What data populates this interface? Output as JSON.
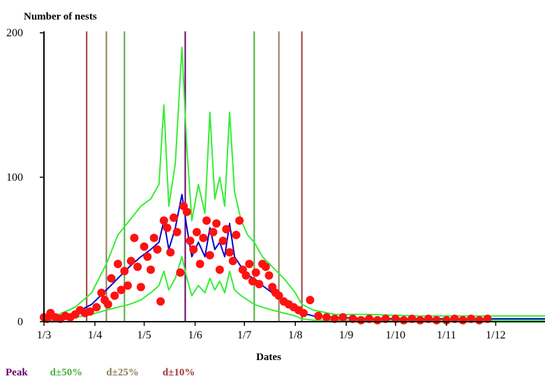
{
  "chart_data": {
    "type": "line",
    "ylabel": "Number of nests",
    "xlabel": "Dates",
    "ylim": [
      0,
      200
    ],
    "yticks": [
      0,
      100,
      200
    ],
    "xlim": [
      "2000-03-01",
      "2000-12-31"
    ],
    "x_ticks": [
      {
        "label": "1/3",
        "date": "2000-03-01"
      },
      {
        "label": "1/4",
        "date": "2000-04-01"
      },
      {
        "label": "1/5",
        "date": "2000-05-01"
      },
      {
        "label": "1/6",
        "date": "2000-06-01"
      },
      {
        "label": "1/7",
        "date": "2000-07-01"
      },
      {
        "label": "1/8",
        "date": "2000-08-01"
      },
      {
        "label": "1/9",
        "date": "2000-09-01"
      },
      {
        "label": "1/10",
        "date": "2000-10-01"
      },
      {
        "label": "1/11",
        "date": "2000-11-01"
      },
      {
        "label": "1/12",
        "date": "2000-12-01"
      }
    ],
    "vertical_lines": [
      {
        "group": "peak",
        "date": "2000-05-26",
        "color": "#660066"
      },
      {
        "group": "d50",
        "date": "2000-04-19",
        "color": "#4caf3f"
      },
      {
        "group": "d50",
        "date": "2000-07-07",
        "color": "#4caf3f"
      },
      {
        "group": "d25",
        "date": "2000-04-08",
        "color": "#8b7d55"
      },
      {
        "group": "d25",
        "date": "2000-07-22",
        "color": "#8b7d55"
      },
      {
        "group": "d10",
        "date": "2000-03-27",
        "color": "#a03a3a"
      },
      {
        "group": "d10",
        "date": "2000-08-05",
        "color": "#a03a3a"
      }
    ],
    "series": [
      {
        "role": "upper-bound",
        "color": "#33ee33",
        "x": [
          "2000-03-01",
          "2000-03-10",
          "2000-03-20",
          "2000-03-30",
          "2000-04-08",
          "2000-04-15",
          "2000-04-22",
          "2000-04-29",
          "2000-05-05",
          "2000-05-10",
          "2000-05-13",
          "2000-05-16",
          "2000-05-20",
          "2000-05-24",
          "2000-05-27",
          "2000-05-30",
          "2000-06-03",
          "2000-06-07",
          "2000-06-10",
          "2000-06-13",
          "2000-06-16",
          "2000-06-19",
          "2000-06-22",
          "2000-06-25",
          "2000-06-29",
          "2000-07-03",
          "2000-07-07",
          "2000-07-12",
          "2000-07-18",
          "2000-07-25",
          "2000-08-01",
          "2000-08-05",
          "2000-08-12",
          "2000-08-25",
          "2000-09-15",
          "2000-10-15",
          "2000-11-15",
          "2000-12-31"
        ],
        "values": [
          3,
          5,
          10,
          20,
          40,
          60,
          70,
          80,
          85,
          95,
          150,
          80,
          110,
          190,
          120,
          70,
          95,
          75,
          145,
          85,
          100,
          80,
          145,
          90,
          70,
          60,
          55,
          45,
          38,
          30,
          20,
          12,
          8,
          5,
          5,
          4,
          4,
          4
        ]
      },
      {
        "role": "mean",
        "color": "#0000cc",
        "x": [
          "2000-03-01",
          "2000-03-10",
          "2000-03-20",
          "2000-03-30",
          "2000-04-08",
          "2000-04-15",
          "2000-04-22",
          "2000-04-29",
          "2000-05-05",
          "2000-05-10",
          "2000-05-13",
          "2000-05-16",
          "2000-05-20",
          "2000-05-24",
          "2000-05-27",
          "2000-05-30",
          "2000-06-03",
          "2000-06-07",
          "2000-06-10",
          "2000-06-13",
          "2000-06-16",
          "2000-06-19",
          "2000-06-22",
          "2000-06-25",
          "2000-06-29",
          "2000-07-03",
          "2000-07-07",
          "2000-07-12",
          "2000-07-18",
          "2000-07-25",
          "2000-08-01",
          "2000-08-05",
          "2000-08-12",
          "2000-08-25",
          "2000-09-15",
          "2000-10-15",
          "2000-11-15",
          "2000-12-31"
        ],
        "values": [
          2,
          3,
          6,
          12,
          22,
          30,
          38,
          45,
          50,
          55,
          70,
          50,
          65,
          88,
          65,
          45,
          55,
          45,
          65,
          50,
          55,
          45,
          68,
          45,
          38,
          32,
          30,
          25,
          20,
          15,
          10,
          6,
          4,
          3,
          2,
          2,
          2,
          2
        ]
      },
      {
        "role": "lower-bound",
        "color": "#33ee33",
        "x": [
          "2000-03-01",
          "2000-03-10",
          "2000-03-20",
          "2000-03-30",
          "2000-04-08",
          "2000-04-15",
          "2000-04-22",
          "2000-04-29",
          "2000-05-05",
          "2000-05-10",
          "2000-05-13",
          "2000-05-16",
          "2000-05-20",
          "2000-05-24",
          "2000-05-27",
          "2000-05-30",
          "2000-06-03",
          "2000-06-07",
          "2000-06-10",
          "2000-06-13",
          "2000-06-16",
          "2000-06-19",
          "2000-06-22",
          "2000-06-25",
          "2000-06-29",
          "2000-07-03",
          "2000-07-07",
          "2000-07-12",
          "2000-07-18",
          "2000-07-25",
          "2000-08-01",
          "2000-08-05",
          "2000-08-12",
          "2000-08-25",
          "2000-09-15",
          "2000-10-15",
          "2000-11-15",
          "2000-12-31"
        ],
        "values": [
          1,
          1,
          3,
          5,
          8,
          10,
          12,
          15,
          20,
          25,
          35,
          22,
          30,
          45,
          30,
          18,
          25,
          20,
          30,
          22,
          28,
          20,
          35,
          22,
          18,
          15,
          12,
          10,
          8,
          6,
          4,
          2,
          1,
          1,
          1,
          1,
          1,
          1
        ]
      },
      {
        "role": "observed",
        "type": "scatter",
        "color": "#ff1111",
        "x": [
          "2000-03-01",
          "2000-03-03",
          "2000-03-05",
          "2000-03-08",
          "2000-03-11",
          "2000-03-14",
          "2000-03-17",
          "2000-03-20",
          "2000-03-23",
          "2000-03-26",
          "2000-03-29",
          "2000-04-02",
          "2000-04-05",
          "2000-04-07",
          "2000-04-09",
          "2000-04-11",
          "2000-04-13",
          "2000-04-15",
          "2000-04-17",
          "2000-04-19",
          "2000-04-21",
          "2000-04-23",
          "2000-04-25",
          "2000-04-27",
          "2000-04-29",
          "2000-05-01",
          "2000-05-03",
          "2000-05-05",
          "2000-05-07",
          "2000-05-09",
          "2000-05-11",
          "2000-05-13",
          "2000-05-15",
          "2000-05-17",
          "2000-05-19",
          "2000-05-21",
          "2000-05-23",
          "2000-05-25",
          "2000-05-27",
          "2000-05-29",
          "2000-05-31",
          "2000-06-02",
          "2000-06-04",
          "2000-06-06",
          "2000-06-08",
          "2000-06-10",
          "2000-06-12",
          "2000-06-14",
          "2000-06-16",
          "2000-06-18",
          "2000-06-20",
          "2000-06-22",
          "2000-06-24",
          "2000-06-26",
          "2000-06-28",
          "2000-06-30",
          "2000-07-02",
          "2000-07-04",
          "2000-07-06",
          "2000-07-08",
          "2000-07-10",
          "2000-07-12",
          "2000-07-14",
          "2000-07-16",
          "2000-07-18",
          "2000-07-20",
          "2000-07-22",
          "2000-07-25",
          "2000-07-28",
          "2000-07-31",
          "2000-08-03",
          "2000-08-06",
          "2000-08-10",
          "2000-08-15",
          "2000-08-20",
          "2000-08-25",
          "2000-08-30",
          "2000-09-05",
          "2000-09-10",
          "2000-09-15",
          "2000-09-20",
          "2000-09-25",
          "2000-10-01",
          "2000-10-06",
          "2000-10-11",
          "2000-10-16",
          "2000-10-21",
          "2000-10-26",
          "2000-11-01",
          "2000-11-06",
          "2000-11-11",
          "2000-11-16",
          "2000-11-21",
          "2000-11-26"
        ],
        "values": [
          3,
          2,
          6,
          3,
          2,
          4,
          3,
          5,
          8,
          6,
          7,
          10,
          20,
          15,
          12,
          30,
          18,
          40,
          22,
          35,
          25,
          42,
          58,
          38,
          24,
          52,
          45,
          36,
          58,
          50,
          14,
          70,
          65,
          48,
          72,
          62,
          34,
          80,
          76,
          56,
          50,
          62,
          40,
          58,
          70,
          46,
          62,
          68,
          36,
          56,
          64,
          48,
          42,
          60,
          70,
          36,
          32,
          40,
          28,
          34,
          26,
          40,
          38,
          32,
          24,
          20,
          18,
          14,
          12,
          10,
          8,
          6,
          15,
          4,
          3,
          2,
          3,
          2,
          1,
          2,
          1,
          2,
          2,
          1,
          2,
          1,
          2,
          1,
          1,
          2,
          1,
          2,
          1,
          2
        ]
      }
    ],
    "legend": [
      {
        "group": "peak",
        "label": "Peak",
        "color": "#660066"
      },
      {
        "group": "d50",
        "label": "d±50%",
        "color": "#4caf3f"
      },
      {
        "group": "d25",
        "label": "d±25%",
        "color": "#8b7d55"
      },
      {
        "group": "d10",
        "label": "d±10%",
        "color": "#a03a3a"
      }
    ],
    "grid": false
  }
}
